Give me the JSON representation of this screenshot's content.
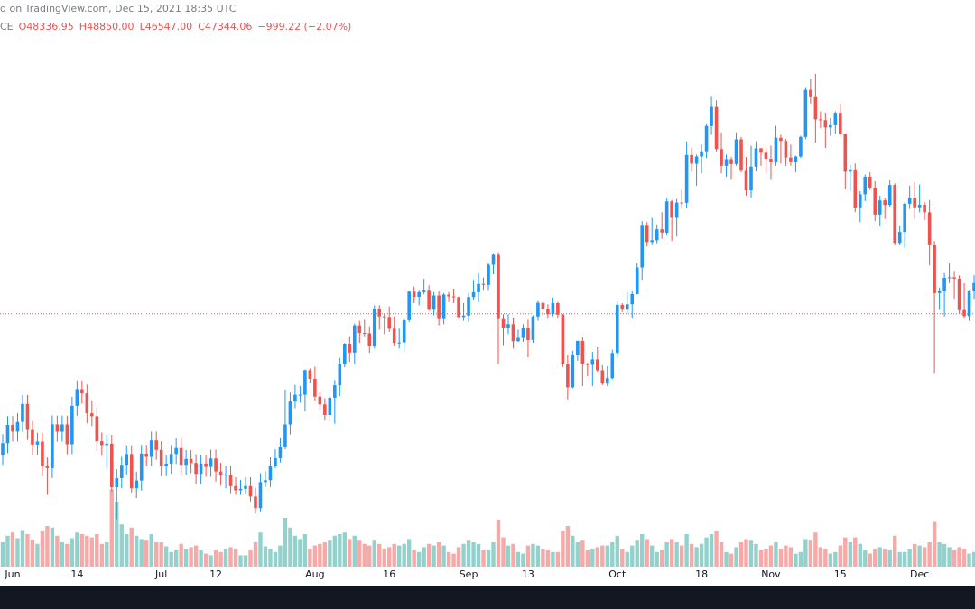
{
  "attribution": "d on TradingView.com, Dec 15, 2021 18:35 UTC",
  "symbol": "CE",
  "ohlc_text": [
    "O48336.95",
    "H48850.00",
    "L46547.00",
    "C47344.06",
    "−999.22 (−2.07%)"
  ],
  "chart_data": {
    "type": "candlestick",
    "up_color": "#2196f3",
    "down_color": "#ef5350",
    "volume_up_color": "#93d2cc",
    "volume_down_color": "#f7a9a7",
    "price_line": 47344.06,
    "price_line_color": "#ef5350",
    "ylim": [
      25000,
      72000
    ],
    "volume_ylim": [
      0,
      100
    ],
    "x": [
      "2021-05-30",
      "2021-05-31",
      "2021-06-01",
      "2021-06-02",
      "2021-06-03",
      "2021-06-04",
      "2021-06-05",
      "2021-06-06",
      "2021-06-07",
      "2021-06-08",
      "2021-06-09",
      "2021-06-10",
      "2021-06-11",
      "2021-06-12",
      "2021-06-13",
      "2021-06-14",
      "2021-06-15",
      "2021-06-16",
      "2021-06-17",
      "2021-06-18",
      "2021-06-19",
      "2021-06-20",
      "2021-06-21",
      "2021-06-22",
      "2021-06-23",
      "2021-06-24",
      "2021-06-25",
      "2021-06-26",
      "2021-06-27",
      "2021-06-28",
      "2021-06-29",
      "2021-06-30",
      "2021-07-01",
      "2021-07-02",
      "2021-07-03",
      "2021-07-04",
      "2021-07-05",
      "2021-07-06",
      "2021-07-07",
      "2021-07-08",
      "2021-07-09",
      "2021-07-10",
      "2021-07-11",
      "2021-07-12",
      "2021-07-13",
      "2021-07-14",
      "2021-07-15",
      "2021-07-16",
      "2021-07-17",
      "2021-07-18",
      "2021-07-19",
      "2021-07-20",
      "2021-07-21",
      "2021-07-22",
      "2021-07-23",
      "2021-07-24",
      "2021-07-25",
      "2021-07-26",
      "2021-07-27",
      "2021-07-28",
      "2021-07-29",
      "2021-07-30",
      "2021-07-31",
      "2021-08-01",
      "2021-08-02",
      "2021-08-03",
      "2021-08-04",
      "2021-08-05",
      "2021-08-06",
      "2021-08-07",
      "2021-08-08",
      "2021-08-09",
      "2021-08-10",
      "2021-08-11",
      "2021-08-12",
      "2021-08-13",
      "2021-08-14",
      "2021-08-15",
      "2021-08-16",
      "2021-08-17",
      "2021-08-18",
      "2021-08-19",
      "2021-08-20",
      "2021-08-21",
      "2021-08-22",
      "2021-08-23",
      "2021-08-24",
      "2021-08-25",
      "2021-08-26",
      "2021-08-27",
      "2021-08-28",
      "2021-08-29",
      "2021-08-30",
      "2021-08-31",
      "2021-09-01",
      "2021-09-02",
      "2021-09-03",
      "2021-09-04",
      "2021-09-05",
      "2021-09-06",
      "2021-09-07",
      "2021-09-08",
      "2021-09-09",
      "2021-09-10",
      "2021-09-11",
      "2021-09-12",
      "2021-09-13",
      "2021-09-14",
      "2021-09-15",
      "2021-09-16",
      "2021-09-17",
      "2021-09-18",
      "2021-09-19",
      "2021-09-20",
      "2021-09-21",
      "2021-09-22",
      "2021-09-23",
      "2021-09-24",
      "2021-09-25",
      "2021-09-26",
      "2021-09-27",
      "2021-09-28",
      "2021-09-29",
      "2021-09-30",
      "2021-10-01",
      "2021-10-02",
      "2021-10-03",
      "2021-10-04",
      "2021-10-05",
      "2021-10-06",
      "2021-10-07",
      "2021-10-08",
      "2021-10-09",
      "2021-10-10",
      "2021-10-11",
      "2021-10-12",
      "2021-10-13",
      "2021-10-14",
      "2021-10-15",
      "2021-10-16",
      "2021-10-17",
      "2021-10-18",
      "2021-10-19",
      "2021-10-20",
      "2021-10-21",
      "2021-10-22",
      "2021-10-23",
      "2021-10-24",
      "2021-10-25",
      "2021-10-26",
      "2021-10-27",
      "2021-10-28",
      "2021-10-29",
      "2021-10-30",
      "2021-10-31",
      "2021-11-01",
      "2021-11-02",
      "2021-11-03",
      "2021-11-04",
      "2021-11-05",
      "2021-11-06",
      "2021-11-07",
      "2021-11-08",
      "2021-11-09",
      "2021-11-10",
      "2021-11-11",
      "2021-11-12",
      "2021-11-13",
      "2021-11-14",
      "2021-11-15",
      "2021-11-16",
      "2021-11-17",
      "2021-11-18",
      "2021-11-19",
      "2021-11-20",
      "2021-11-21",
      "2021-11-22",
      "2021-11-23",
      "2021-11-24",
      "2021-11-25",
      "2021-11-26",
      "2021-11-27",
      "2021-11-28",
      "2021-11-29",
      "2021-11-30",
      "2021-12-01",
      "2021-12-02",
      "2021-12-03",
      "2021-12-04",
      "2021-12-05",
      "2021-12-06",
      "2021-12-07",
      "2021-12-08",
      "2021-12-09",
      "2021-12-10",
      "2021-12-11",
      "2021-12-12"
    ],
    "xticks": [
      {
        "value": "2021-06-01",
        "label": "Jun"
      },
      {
        "value": "2021-06-14",
        "label": "14"
      },
      {
        "value": "2021-07-01",
        "label": "Jul"
      },
      {
        "value": "2021-07-12",
        "label": "12"
      },
      {
        "value": "2021-08-01",
        "label": "Aug"
      },
      {
        "value": "2021-08-16",
        "label": "16"
      },
      {
        "value": "2021-09-01",
        "label": "Sep"
      },
      {
        "value": "2021-09-13",
        "label": "13"
      },
      {
        "value": "2021-10-01",
        "label": "Oct"
      },
      {
        "value": "2021-10-18",
        "label": "18"
      },
      {
        "value": "2021-11-01",
        "label": "Nov"
      },
      {
        "value": "2021-11-15",
        "label": "15"
      },
      {
        "value": "2021-12-01",
        "label": "Dec"
      }
    ],
    "open": [
      34600,
      35650,
      37300,
      36700,
      37570,
      39190,
      36850,
      35520,
      35800,
      33560,
      33400,
      37350,
      36690,
      37340,
      35550,
      39020,
      40520,
      40140,
      38350,
      38090,
      35820,
      35480,
      35600,
      31680,
      32500,
      33700,
      34660,
      31590,
      32280,
      34700,
      34490,
      35900,
      35040,
      33570,
      33800,
      34670,
      35290,
      33690,
      34220,
      33860,
      32880,
      33810,
      33510,
      34260,
      33090,
      32730,
      32820,
      31780,
      31400,
      31530,
      31780,
      30840,
      29790,
      32140,
      32310,
      33580,
      34290,
      35350,
      37340,
      39410,
      40020,
      40020,
      42240,
      41460,
      39850,
      39150,
      38200,
      39750,
      40870,
      42820,
      44630,
      43830,
      46290,
      45600,
      45570,
      44430,
      47800,
      47100,
      47050,
      45990,
      44690,
      44740,
      46760,
      49340,
      48870,
      49290,
      49500,
      47710,
      48990,
      46860,
      49070,
      48900,
      48830,
      47050,
      47170,
      48850,
      49290,
      50030,
      49940,
      51760,
      52660,
      46860,
      46070,
      46400,
      44850,
      45160,
      46060,
      44960,
      47090,
      48330,
      47760,
      47300,
      48300,
      47260,
      42840,
      40690,
      43570,
      44880,
      42840,
      42720,
      43210,
      42230,
      41030,
      41520,
      43790,
      48140,
      47710,
      48200,
      49110,
      51510,
      55360,
      53810,
      53970,
      54960,
      54660,
      57480,
      56000,
      57370,
      57350,
      61670,
      60880,
      61530,
      62010,
      64280,
      66000,
      62210,
      60690,
      61290,
      60850,
      63080,
      60330,
      58470,
      60620,
      62270,
      61880,
      61320,
      61000,
      63230,
      62940,
      61440,
      61010,
      61530,
      63300,
      67550,
      66970,
      64880,
      64810,
      64150,
      64400,
      65470,
      63560,
      60160,
      60370,
      56940,
      58120,
      59700,
      58730,
      56290,
      57570,
      57160,
      58960,
      53730,
      54720,
      57270,
      57810,
      56950,
      57180,
      56490,
      53600,
      49200,
      49400,
      50580,
      50620,
      50500,
      47670,
      47130,
      49390
    ],
    "high": [
      36450,
      38100,
      38100,
      38370,
      39990,
      39990,
      37650,
      36600,
      36600,
      34360,
      38150,
      38150,
      38140,
      38140,
      39820,
      41320,
      41320,
      40940,
      39500,
      38890,
      36620,
      36400,
      36400,
      33300,
      34500,
      35460,
      35460,
      33080,
      35500,
      35500,
      36700,
      36700,
      35840,
      34600,
      35470,
      36090,
      36090,
      35020,
      35020,
      34660,
      34610,
      34610,
      35060,
      35060,
      33890,
      33620,
      33620,
      32580,
      32330,
      32580,
      32580,
      31640,
      32940,
      33110,
      34380,
      35090,
      36150,
      40500,
      40210,
      40900,
      40820,
      42300,
      42400,
      42550,
      40400,
      39700,
      39970,
      41350,
      43350,
      44700,
      45300,
      46450,
      46700,
      46800,
      46200,
      48100,
      48100,
      47400,
      48000,
      47100,
      46000,
      47000,
      49400,
      49800,
      49500,
      50500,
      49900,
      49300,
      49400,
      49200,
      49300,
      49600,
      48900,
      48300,
      49200,
      50400,
      51000,
      50600,
      51900,
      52800,
      52900,
      47300,
      47300,
      47000,
      45900,
      46400,
      46800,
      47200,
      48500,
      48500,
      48200,
      48800,
      48400,
      47300,
      43600,
      44000,
      44900,
      45200,
      42900,
      43900,
      44300,
      42700,
      42600,
      44100,
      48500,
      48300,
      49300,
      49400,
      51900,
      55700,
      55600,
      56000,
      55400,
      56500,
      57800,
      57600,
      57700,
      58500,
      62900,
      62300,
      61700,
      62600,
      64500,
      67000,
      66600,
      63700,
      61700,
      61500,
      63700,
      63300,
      61500,
      62500,
      62900,
      62300,
      62400,
      62500,
      64300,
      63500,
      63100,
      62600,
      61600,
      63400,
      67800,
      68500,
      69000,
      65600,
      65500,
      65000,
      65600,
      66300,
      63600,
      60800,
      60900,
      58400,
      59900,
      60100,
      59300,
      58000,
      57800,
      59400,
      59100,
      55300,
      57400,
      58900,
      59200,
      59000,
      57400,
      57600,
      53900,
      49700,
      51000,
      51900,
      51200,
      50800,
      50100,
      49500,
      50800
    ],
    "low": [
      33700,
      34750,
      35800,
      35800,
      36670,
      35950,
      34620,
      34620,
      32660,
      31000,
      32500,
      35790,
      35790,
      34650,
      34650,
      38120,
      39240,
      37450,
      37190,
      34920,
      34580,
      33350,
      31300,
      28800,
      31600,
      32800,
      31200,
      30700,
      31380,
      33590,
      33590,
      34140,
      32670,
      32670,
      32900,
      33770,
      32790,
      32790,
      32960,
      31980,
      31980,
      32610,
      32610,
      32190,
      31830,
      31580,
      31130,
      31000,
      31000,
      31100,
      30400,
      29300,
      29500,
      31700,
      31700,
      33400,
      33900,
      35100,
      36440,
      38800,
      39300,
      38500,
      41100,
      39500,
      38700,
      37700,
      37600,
      37400,
      39900,
      42500,
      43000,
      42800,
      44700,
      45300,
      43800,
      44200,
      45900,
      45500,
      45700,
      44400,
      44200,
      43900,
      46600,
      48300,
      48100,
      49100,
      47600,
      47200,
      46300,
      46400,
      48400,
      48300,
      46900,
      46700,
      46600,
      48600,
      48400,
      49500,
      49500,
      50900,
      42800,
      44500,
      45500,
      44200,
      44800,
      44800,
      43400,
      44700,
      46700,
      47200,
      46900,
      47100,
      46900,
      42500,
      39600,
      40600,
      43100,
      40800,
      41700,
      40800,
      42100,
      40900,
      40800,
      41400,
      43300,
      47500,
      47400,
      46900,
      49100,
      50400,
      53400,
      53600,
      53700,
      54100,
      54400,
      53900,
      54300,
      56800,
      56900,
      60200,
      58900,
      60000,
      61400,
      63500,
      62000,
      60000,
      59700,
      59500,
      60700,
      60100,
      58000,
      57800,
      60200,
      60700,
      60000,
      59500,
      60700,
      60900,
      60700,
      60700,
      60100,
      61400,
      63100,
      66300,
      62800,
      64100,
      62300,
      63400,
      63600,
      63500,
      58600,
      58400,
      56500,
      55600,
      57500,
      58500,
      55700,
      55300,
      55900,
      57000,
      53600,
      53600,
      53300,
      56800,
      55900,
      56500,
      55800,
      51700,
      42000,
      47700,
      47100,
      50100,
      48700,
      47400,
      46900,
      46700,
      48700
    ],
    "close": [
      35650,
      37300,
      36700,
      37570,
      39190,
      36850,
      35520,
      35800,
      33560,
      33400,
      37350,
      36690,
      37340,
      35550,
      39020,
      40520,
      40140,
      38350,
      38090,
      35820,
      35480,
      35600,
      31680,
      32500,
      33700,
      34660,
      31590,
      32280,
      34700,
      34490,
      35900,
      35040,
      33570,
      33800,
      34670,
      35290,
      33690,
      34220,
      33860,
      32880,
      33810,
      33510,
      34260,
      33090,
      32730,
      32820,
      31780,
      31400,
      31530,
      31780,
      30840,
      29790,
      32140,
      32310,
      33580,
      34290,
      35350,
      37340,
      39410,
      40020,
      40020,
      42240,
      41460,
      39850,
      39150,
      38200,
      39750,
      40870,
      42820,
      44630,
      43830,
      46290,
      45600,
      45570,
      44430,
      47800,
      47100,
      47050,
      45990,
      44690,
      44740,
      46760,
      49340,
      48870,
      49290,
      49500,
      47710,
      48990,
      46860,
      49070,
      48900,
      48830,
      47050,
      47170,
      48850,
      49290,
      50030,
      49940,
      51760,
      52660,
      46860,
      46070,
      46400,
      44850,
      45160,
      46060,
      44960,
      47090,
      48330,
      47760,
      47300,
      48300,
      47260,
      42840,
      40690,
      43570,
      44880,
      42840,
      42720,
      43210,
      42230,
      41030,
      41520,
      43790,
      48140,
      47710,
      48200,
      49110,
      51510,
      55360,
      53810,
      53970,
      54960,
      54660,
      57480,
      56000,
      57370,
      57350,
      61670,
      60880,
      61530,
      62010,
      64280,
      66000,
      62210,
      60690,
      61290,
      60850,
      63080,
      60330,
      58470,
      60620,
      62270,
      61880,
      61320,
      61000,
      63230,
      62940,
      61440,
      61010,
      61530,
      63300,
      67550,
      66970,
      64880,
      64810,
      64150,
      64400,
      65470,
      63560,
      60160,
      60370,
      56940,
      58120,
      59700,
      58730,
      56290,
      57570,
      57160,
      58960,
      53730,
      54720,
      57270,
      57810,
      56950,
      57180,
      56490,
      53600,
      49200,
      49400,
      50580,
      50620,
      50500,
      47670,
      47130,
      49390,
      50110
    ],
    "volume": [
      30,
      38,
      42,
      35,
      45,
      40,
      33,
      28,
      44,
      50,
      48,
      38,
      30,
      28,
      35,
      42,
      40,
      38,
      36,
      40,
      28,
      30,
      95,
      80,
      52,
      40,
      48,
      38,
      34,
      32,
      40,
      30,
      30,
      25,
      18,
      20,
      28,
      22,
      24,
      26,
      20,
      16,
      14,
      20,
      18,
      22,
      24,
      22,
      14,
      14,
      20,
      30,
      42,
      25,
      22,
      18,
      26,
      60,
      48,
      38,
      34,
      40,
      22,
      26,
      28,
      30,
      32,
      38,
      40,
      42,
      34,
      38,
      32,
      28,
      26,
      32,
      28,
      22,
      24,
      28,
      26,
      28,
      34,
      20,
      18,
      24,
      28,
      26,
      30,
      26,
      18,
      16,
      24,
      28,
      32,
      30,
      28,
      20,
      20,
      30,
      58,
      36,
      26,
      28,
      18,
      16,
      26,
      28,
      26,
      22,
      20,
      18,
      18,
      44,
      50,
      38,
      30,
      32,
      20,
      22,
      24,
      26,
      26,
      30,
      38,
      22,
      18,
      26,
      32,
      40,
      34,
      26,
      18,
      20,
      30,
      34,
      30,
      26,
      40,
      28,
      24,
      28,
      36,
      40,
      44,
      30,
      18,
      16,
      24,
      30,
      34,
      32,
      28,
      20,
      22,
      26,
      30,
      22,
      26,
      24,
      16,
      18,
      34,
      32,
      42,
      24,
      22,
      16,
      18,
      26,
      36,
      30,
      36,
      28,
      20,
      16,
      22,
      24,
      22,
      20,
      38,
      18,
      18,
      22,
      28,
      26,
      24,
      30,
      55,
      30,
      28,
      24,
      20,
      24,
      22,
      16,
      18
    ]
  }
}
